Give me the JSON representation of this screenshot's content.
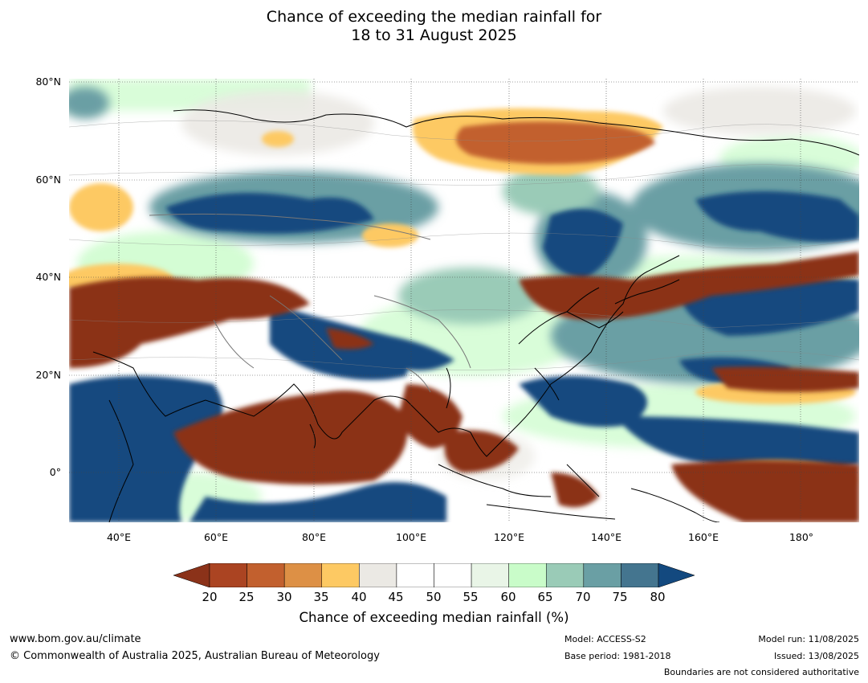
{
  "title_line1": "Chance of exceeding the median rainfall for",
  "title_line2": "18 to 31 August 2025",
  "map": {
    "lat_labels": [
      "80°N",
      "60°N",
      "40°N",
      "20°N",
      "0°"
    ],
    "lon_labels": [
      "40°E",
      "60°E",
      "80°E",
      "100°E",
      "120°E",
      "140°E",
      "160°E",
      "180°"
    ],
    "extent": {
      "lon_min": 30,
      "lon_max": 192,
      "lat_min": -11,
      "lat_max": 80
    }
  },
  "colorbar": {
    "ticks": [
      "20",
      "25",
      "30",
      "35",
      "40",
      "45",
      "50",
      "55",
      "60",
      "65",
      "70",
      "75",
      "80"
    ],
    "under_color": "#8b3219",
    "over_color": "#13497f",
    "colors": [
      "#ab4422",
      "#c2602e",
      "#dd9045",
      "#fdc963",
      "#ebe9e4",
      "#ffffff",
      "#ffffff",
      "#e9f5e7",
      "#c9fcc9",
      "#9acbb7",
      "#6a9fa4",
      "#44758f"
    ],
    "label": "Chance of exceeding median rainfall (%)"
  },
  "footer": {
    "url": "www.bom.gov.au/climate",
    "copyright": "© Commonwealth of Australia 2025, Australian Bureau of Meteorology",
    "model": "Model: ACCESS-S2",
    "base_period": "Base period: 1981-2018",
    "model_run": "Model run: 11/08/2025",
    "issued": "Issued: 13/08/2025",
    "disclaimer": "Boundaries are not considered authoritative"
  }
}
